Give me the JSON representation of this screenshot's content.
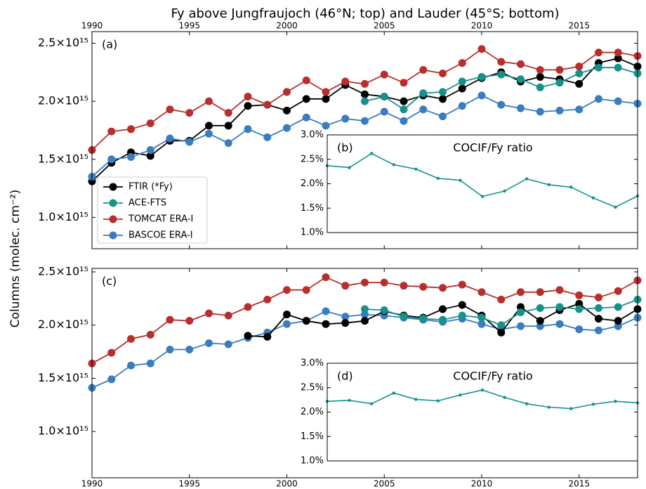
{
  "figure": {
    "title": "Fy above Jungfraujoch (46°N; top) and Lauder (45°S; bottom)",
    "ylabel": "Columns (molec. cm⁻²)"
  },
  "chart_data": [
    {
      "type": "line",
      "label": "(a)",
      "x": [
        1990,
        1991,
        1992,
        1993,
        1994,
        1995,
        1996,
        1997,
        1998,
        1999,
        2000,
        2001,
        2002,
        2003,
        2004,
        2005,
        2006,
        2007,
        2008,
        2009,
        2010,
        2011,
        2012,
        2013,
        2014,
        2015,
        2016,
        2017,
        2018
      ],
      "xlim": [
        1990,
        2018
      ],
      "xticks": [
        1990,
        1995,
        2000,
        2005,
        2010,
        2015
      ],
      "xaxis_position": "top",
      "ylim": [
        730000000000000.0,
        2600000000000000.0
      ],
      "yticks": [
        {
          "value": 1000000000000000.0,
          "label": "1.0×10¹⁵"
        },
        {
          "value": 1500000000000000.0,
          "label": "1.5×10¹⁵"
        },
        {
          "value": 2000000000000000.0,
          "label": "2.0×10¹⁵"
        },
        {
          "value": 2500000000000000.0,
          "label": "2.5×10¹⁵"
        }
      ],
      "legend": "lower left",
      "series": [
        {
          "name": "FTIR (*Fy)",
          "color": "#000000",
          "values": [
            1310000000000000.0,
            1470000000000000.0,
            1560000000000000.0,
            1530000000000000.0,
            1660000000000000.0,
            1660000000000000.0,
            1790000000000000.0,
            1790000000000000.0,
            1960000000000000.0,
            1970000000000000.0,
            1920000000000000.0,
            2020000000000000.0,
            2020000000000000.0,
            2140000000000000.0,
            2060000000000000.0,
            2040000000000000.0,
            2000000000000000.0,
            2050000000000000.0,
            2020000000000000.0,
            2110000000000000.0,
            2200000000000000.0,
            2250000000000000.0,
            2170000000000000.0,
            2210000000000000.0,
            2190000000000000.0,
            2150000000000000.0,
            2330000000000000.0,
            2370000000000000.0,
            2300000000000000.0
          ]
        },
        {
          "name": "ACE-FTS",
          "color": "#17918b",
          "values": [
            null,
            null,
            null,
            null,
            null,
            null,
            null,
            null,
            null,
            null,
            null,
            null,
            null,
            null,
            2000000000000000.0,
            2040000000000000.0,
            1930000000000000.0,
            2070000000000000.0,
            2080000000000000.0,
            2170000000000000.0,
            2210000000000000.0,
            2230000000000000.0,
            2190000000000000.0,
            2120000000000000.0,
            2160000000000000.0,
            2240000000000000.0,
            2290000000000000.0,
            2290000000000000.0,
            2240000000000000.0
          ]
        },
        {
          "name": "TOMCAT ERA-I",
          "color": "#b82e2e",
          "values": [
            1580000000000000.0,
            1740000000000000.0,
            1760000000000000.0,
            1810000000000000.0,
            1930000000000000.0,
            1900000000000000.0,
            2000000000000000.0,
            1900000000000000.0,
            2040000000000000.0,
            1970000000000000.0,
            2080000000000000.0,
            2180000000000000.0,
            2080000000000000.0,
            2170000000000000.0,
            2150000000000000.0,
            2230000000000000.0,
            2160000000000000.0,
            2270000000000000.0,
            2240000000000000.0,
            2330000000000000.0,
            2450000000000000.0,
            2340000000000000.0,
            2320000000000000.0,
            2270000000000000.0,
            2270000000000000.0,
            2300000000000000.0,
            2420000000000000.0,
            2420000000000000.0,
            2390000000000000.0
          ]
        },
        {
          "name": "BASCOE ERA-I",
          "color": "#3a7dbf",
          "values": [
            1350000000000000.0,
            1500000000000000.0,
            1520000000000000.0,
            1580000000000000.0,
            1680000000000000.0,
            1650000000000000.0,
            1720000000000000.0,
            1640000000000000.0,
            1760000000000000.0,
            1690000000000000.0,
            1770000000000000.0,
            1860000000000000.0,
            1790000000000000.0,
            1850000000000000.0,
            1830000000000000.0,
            1910000000000000.0,
            1830000000000000.0,
            1930000000000000.0,
            1870000000000000.0,
            1960000000000000.0,
            2050000000000000.0,
            1970000000000000.0,
            1940000000000000.0,
            1910000000000000.0,
            1920000000000000.0,
            1930000000000000.0,
            2020000000000000.0,
            2000000000000000.0,
            1980000000000000.0
          ]
        }
      ]
    },
    {
      "type": "line",
      "inset": true,
      "label": "(b)",
      "title": "COCIF/Fy ratio",
      "x": [
        2004,
        2005,
        2006,
        2007,
        2008,
        2009,
        2010,
        2011,
        2012,
        2013,
        2014,
        2015,
        2016,
        2017,
        2018
      ],
      "xlim": [
        2004,
        2018
      ],
      "ylim": [
        1.0,
        3.0
      ],
      "yticks": [
        {
          "value": 1.0,
          "label": "1.0%"
        },
        {
          "value": 1.5,
          "label": "1.5%"
        },
        {
          "value": 2.0,
          "label": "2.0%"
        },
        {
          "value": 2.5,
          "label": "2.5%"
        },
        {
          "value": 3.0,
          "label": "3.0%"
        }
      ],
      "series": [
        {
          "color": "#17918b",
          "values": [
            2.37,
            2.33,
            2.62,
            2.39,
            2.3,
            2.11,
            2.07,
            1.74,
            1.85,
            2.1,
            1.98,
            1.93,
            1.71,
            1.52,
            1.75
          ]
        }
      ]
    },
    {
      "type": "line",
      "label": "(c)",
      "x": [
        1990,
        1991,
        1992,
        1993,
        1994,
        1995,
        1996,
        1997,
        1998,
        1999,
        2000,
        2001,
        2002,
        2003,
        2004,
        2005,
        2006,
        2007,
        2008,
        2009,
        2010,
        2011,
        2012,
        2013,
        2014,
        2015,
        2016,
        2017,
        2018
      ],
      "xlim": [
        1990,
        2018
      ],
      "xticks": [
        1990,
        1995,
        2000,
        2005,
        2010,
        2015
      ],
      "xaxis_position": "bottom",
      "ylim": [
        565000000000000.0,
        2533000000000000.0
      ],
      "yticks": [
        {
          "value": 1000000000000000.0,
          "label": "1.0×10¹⁵"
        },
        {
          "value": 1500000000000000.0,
          "label": "1.5×10¹⁵"
        },
        {
          "value": 2000000000000000.0,
          "label": "2.0×10¹⁵"
        },
        {
          "value": 2500000000000000.0,
          "label": "2.5×10¹⁵"
        }
      ],
      "series": [
        {
          "color": "#b82e2e",
          "values": [
            1640000000000000.0,
            1740000000000000.0,
            1870000000000000.0,
            1910000000000000.0,
            2050000000000000.0,
            2040000000000000.0,
            2110000000000000.0,
            2090000000000000.0,
            2170000000000000.0,
            2240000000000000.0,
            2330000000000000.0,
            2330000000000000.0,
            2450000000000000.0,
            2370000000000000.0,
            2400000000000000.0,
            2400000000000000.0,
            2370000000000000.0,
            2360000000000000.0,
            2350000000000000.0,
            2380000000000000.0,
            2310000000000000.0,
            2240000000000000.0,
            2310000000000000.0,
            2310000000000000.0,
            2330000000000000.0,
            2280000000000000.0,
            2260000000000000.0,
            2320000000000000.0,
            2420000000000000.0
          ]
        },
        {
          "color": "#3a7dbf",
          "values": [
            1410000000000000.0,
            1490000000000000.0,
            1620000000000000.0,
            1640000000000000.0,
            1770000000000000.0,
            1770000000000000.0,
            1830000000000000.0,
            1820000000000000.0,
            1880000000000000.0,
            1930000000000000.0,
            2010000000000000.0,
            2040000000000000.0,
            2130000000000000.0,
            2080000000000000.0,
            2100000000000000.0,
            2090000000000000.0,
            2070000000000000.0,
            2050000000000000.0,
            2030000000000000.0,
            2060000000000000.0,
            2010000000000000.0,
            1960000000000000.0,
            1990000000000000.0,
            1990000000000000.0,
            2010000000000000.0,
            1960000000000000.0,
            1950000000000000.0,
            1990000000000000.0,
            2070000000000000.0
          ]
        },
        {
          "color": "#000000",
          "values": [
            null,
            null,
            null,
            null,
            null,
            null,
            null,
            null,
            1900000000000000.0,
            1890000000000000.0,
            2100000000000000.0,
            2040000000000000.0,
            2010000000000000.0,
            2020000000000000.0,
            2040000000000000.0,
            2130000000000000.0,
            2090000000000000.0,
            2070000000000000.0,
            2150000000000000.0,
            2190000000000000.0,
            2090000000000000.0,
            1930000000000000.0,
            2170000000000000.0,
            2040000000000000.0,
            2140000000000000.0,
            2200000000000000.0,
            2060000000000000.0,
            2040000000000000.0,
            2150000000000000.0
          ]
        },
        {
          "color": "#17918b",
          "values": [
            null,
            null,
            null,
            null,
            null,
            null,
            null,
            null,
            null,
            null,
            null,
            null,
            null,
            null,
            2150000000000000.0,
            2140000000000000.0,
            2080000000000000.0,
            2060000000000000.0,
            2050000000000000.0,
            2090000000000000.0,
            2070000000000000.0,
            2000000000000000.0,
            2120000000000000.0,
            2160000000000000.0,
            2170000000000000.0,
            2150000000000000.0,
            2160000000000000.0,
            2170000000000000.0,
            2240000000000000.0
          ]
        }
      ]
    },
    {
      "type": "line",
      "inset": true,
      "label": "(d)",
      "title": "COCIF/Fy ratio",
      "x": [
        2004,
        2005,
        2006,
        2007,
        2008,
        2009,
        2010,
        2011,
        2012,
        2013,
        2014,
        2015,
        2016,
        2017,
        2018
      ],
      "xlim": [
        2004,
        2018
      ],
      "ylim": [
        1.0,
        3.0
      ],
      "yticks": [
        {
          "value": 1.0,
          "label": "1.0%"
        },
        {
          "value": 1.5,
          "label": "1.5%"
        },
        {
          "value": 2.0,
          "label": "2.0%"
        },
        {
          "value": 2.5,
          "label": "2.5%"
        },
        {
          "value": 3.0,
          "label": "3.0%"
        }
      ],
      "series": [
        {
          "color": "#17918b",
          "values": [
            2.22,
            2.24,
            2.17,
            2.39,
            2.26,
            2.23,
            2.35,
            2.45,
            2.3,
            2.17,
            2.1,
            2.07,
            2.16,
            2.22,
            2.19
          ]
        }
      ]
    }
  ]
}
